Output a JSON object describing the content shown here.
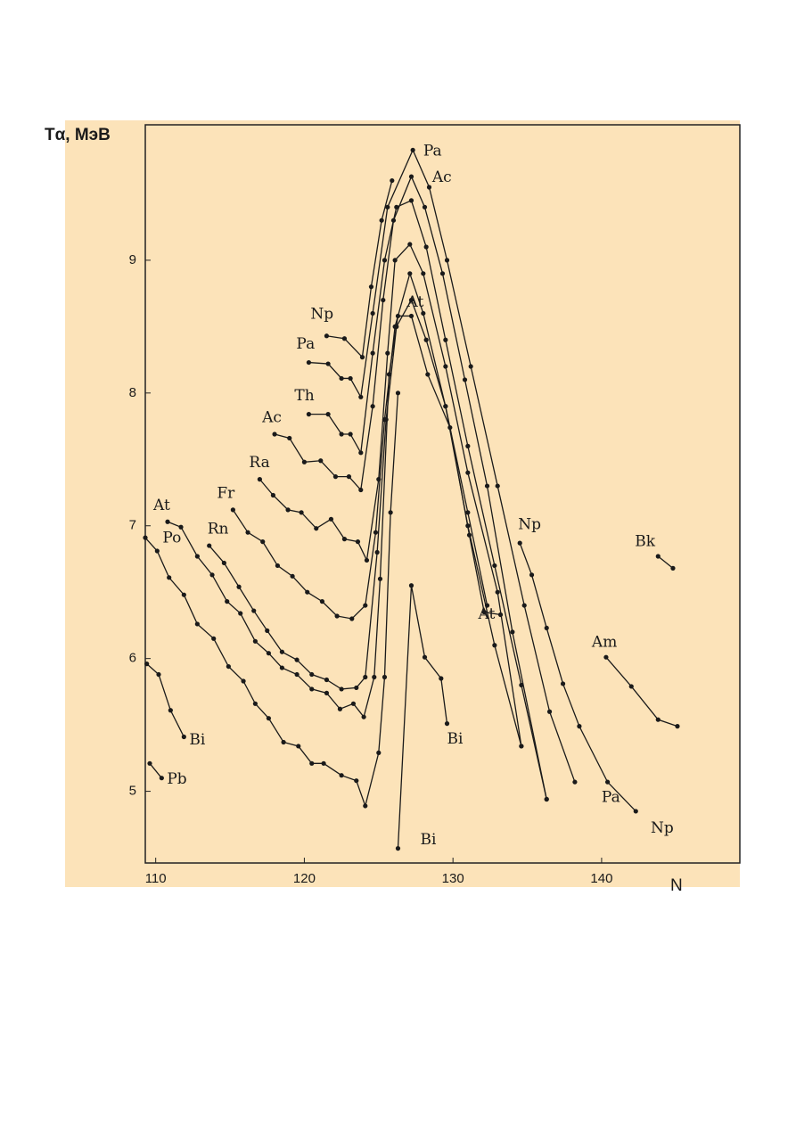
{
  "chart_data": {
    "type": "line",
    "x_label": "N",
    "y_label": "Tα, МэВ",
    "xlim": [
      109.3,
      149.3
    ],
    "ylim": [
      4.46,
      10.02
    ],
    "xticks": [
      110,
      120,
      130,
      140
    ],
    "yticks": [
      5,
      6,
      7,
      8,
      9
    ],
    "color": "#1a1a1a",
    "grid": false,
    "series": [
      {
        "name": "Pb",
        "x": [
          109.6,
          110.4
        ],
        "values": [
          5.21,
          5.1
        ]
      },
      {
        "name": "Bi",
        "x": [
          109.4,
          110.2,
          111.0,
          111.9
        ],
        "values": [
          5.96,
          5.88,
          5.61,
          5.41
        ]
      },
      {
        "name": "Po",
        "x": [
          109.3,
          110.1,
          110.9,
          111.9,
          112.8,
          113.9,
          114.9,
          115.9,
          116.7,
          117.6,
          118.6,
          119.6,
          120.5,
          121.3,
          122.5,
          123.5,
          124.1,
          125.0,
          125.4,
          125.8,
          126.3
        ],
        "values": [
          6.91,
          6.81,
          6.61,
          6.48,
          6.26,
          6.15,
          5.94,
          5.83,
          5.66,
          5.55,
          5.37,
          5.34,
          5.21,
          5.21,
          5.12,
          5.08,
          4.89,
          5.29,
          5.86,
          7.1,
          8.0
        ]
      },
      {
        "name": "At",
        "x": [
          110.8,
          111.7,
          112.8,
          113.8,
          114.8,
          115.7,
          116.7,
          117.6,
          118.5,
          119.5,
          120.5,
          121.5,
          122.4,
          123.3,
          124.0,
          124.7,
          125.1,
          125.7,
          126.3,
          127.2,
          128.3,
          129.8,
          131.1,
          132.1,
          133.2
        ],
        "values": [
          7.03,
          6.99,
          6.77,
          6.63,
          6.43,
          6.34,
          6.13,
          6.04,
          5.93,
          5.88,
          5.77,
          5.74,
          5.62,
          5.66,
          5.56,
          5.86,
          6.6,
          8.14,
          8.58,
          8.58,
          8.14,
          7.74,
          6.93,
          6.35,
          6.33
        ]
      },
      {
        "name": "Rn",
        "x": [
          113.6,
          114.6,
          115.6,
          116.6,
          117.5,
          118.5,
          119.5,
          120.5,
          121.5,
          122.5,
          123.5,
          124.1,
          124.9,
          125.5,
          126.2,
          127.2,
          128.2,
          129.5,
          131.0,
          132.3
        ],
        "values": [
          6.85,
          6.72,
          6.54,
          6.36,
          6.21,
          6.05,
          5.99,
          5.88,
          5.84,
          5.77,
          5.78,
          5.86,
          6.8,
          7.8,
          8.5,
          8.7,
          8.4,
          7.9,
          7.1,
          6.4
        ]
      },
      {
        "name": "Fr",
        "x": [
          115.2,
          116.2,
          117.2,
          118.2,
          119.2,
          120.2,
          121.2,
          122.2,
          123.2,
          124.1,
          124.8,
          125.4,
          126.1,
          127.1,
          128.0,
          129.5,
          131.0,
          132.8,
          134.6
        ],
        "values": [
          7.12,
          6.95,
          6.88,
          6.7,
          6.62,
          6.5,
          6.43,
          6.32,
          6.3,
          6.4,
          6.95,
          7.8,
          8.5,
          8.9,
          8.6,
          7.9,
          7.0,
          6.1,
          5.34
        ]
      },
      {
        "name": "Ra",
        "x": [
          117.0,
          117.9,
          118.9,
          119.8,
          120.8,
          121.8,
          122.7,
          123.6,
          124.2,
          125.0,
          125.6,
          126.1,
          127.1,
          128.0,
          129.5,
          131.0,
          133.0,
          134.6
        ],
        "values": [
          7.35,
          7.23,
          7.12,
          7.1,
          6.98,
          7.05,
          6.9,
          6.88,
          6.74,
          7.35,
          8.3,
          9.0,
          9.12,
          8.9,
          8.2,
          7.4,
          6.5,
          5.34
        ]
      },
      {
        "name": "Ac",
        "x": [
          118.0,
          119.0,
          120.0,
          121.1,
          122.1,
          123.0,
          123.8,
          124.6,
          125.3,
          126.0,
          127.2,
          128.1,
          129.3,
          130.8,
          132.3,
          134.0,
          136.3
        ],
        "values": [
          7.69,
          7.66,
          7.48,
          7.49,
          7.37,
          7.37,
          7.27,
          7.9,
          8.7,
          9.3,
          9.63,
          9.4,
          8.9,
          8.1,
          7.3,
          6.2,
          4.94
        ]
      },
      {
        "name": "Th",
        "x": [
          120.3,
          121.6,
          122.5,
          123.1,
          123.8,
          124.6,
          125.4,
          126.2,
          127.2,
          128.2,
          129.5,
          131.0,
          132.8,
          134.6,
          136.3
        ],
        "values": [
          7.84,
          7.84,
          7.69,
          7.69,
          7.55,
          8.3,
          9.0,
          9.4,
          9.45,
          9.1,
          8.4,
          7.6,
          6.7,
          5.8,
          4.94
        ]
      },
      {
        "name": "Pa",
        "x": [
          120.3,
          121.6,
          122.5,
          123.1,
          123.8,
          124.6,
          125.6,
          127.3,
          128.4,
          129.6,
          131.2,
          133.0,
          134.8,
          136.5,
          138.2
        ],
        "values": [
          8.23,
          8.22,
          8.11,
          8.11,
          7.97,
          8.6,
          9.4,
          9.83,
          9.55,
          9.0,
          8.2,
          7.3,
          6.4,
          5.6,
          5.07
        ]
      },
      {
        "name": "Np",
        "x": [
          121.5,
          122.7,
          123.9,
          124.5,
          125.2,
          125.9
        ],
        "values": [
          8.43,
          8.41,
          8.27,
          8.8,
          9.3,
          9.6
        ]
      },
      {
        "name": "Np",
        "x": [
          134.5,
          135.3,
          136.3,
          137.4,
          138.5,
          140.4,
          142.3
        ],
        "values": [
          6.87,
          6.63,
          6.23,
          5.81,
          5.49,
          5.07,
          4.85
        ]
      },
      {
        "name": "Bi",
        "x": [
          126.3,
          127.2,
          128.1,
          129.2,
          129.6
        ],
        "values": [
          4.57,
          6.55,
          6.01,
          5.85,
          5.51
        ]
      },
      {
        "name": "Am",
        "x": [
          140.3,
          142.0,
          143.8,
          145.1
        ],
        "values": [
          6.01,
          5.79,
          5.54,
          5.49
        ]
      },
      {
        "name": "Bk",
        "x": [
          143.8,
          144.8
        ],
        "values": [
          6.77,
          6.68
        ]
      }
    ],
    "annotations": [
      {
        "text": "Pa",
        "x": 128.0,
        "y": 9.82
      },
      {
        "text": "Ac",
        "x": 128.6,
        "y": 9.62
      },
      {
        "text": "At",
        "x": 126.9,
        "y": 8.68
      },
      {
        "text": "At",
        "x": 131.7,
        "y": 6.33
      },
      {
        "text": "Pa",
        "x": 140.0,
        "y": 4.95
      },
      {
        "text": "Np",
        "x": 143.3,
        "y": 4.72
      },
      {
        "text": "Bi",
        "x": 127.8,
        "y": 4.63
      }
    ]
  }
}
